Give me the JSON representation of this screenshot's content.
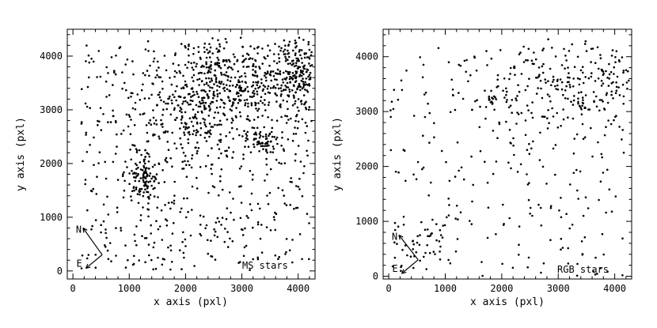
{
  "chart_data": [
    {
      "type": "scatter",
      "annotation": "MS stars",
      "xlabel": "x axis (pxl)",
      "ylabel": "y axis (pxl)",
      "xlim": [
        -100,
        4300
      ],
      "ylim": [
        -150,
        4500
      ],
      "xticks": [
        0,
        1000,
        2000,
        3000,
        4000
      ],
      "yticks": [
        0,
        1000,
        2000,
        3000,
        4000
      ],
      "xtick_labels": [
        "0",
        "1000",
        "2000",
        "3000",
        "4000"
      ],
      "ytick_labels": [
        "0",
        "1000",
        "2000",
        "3000",
        "4000"
      ],
      "grid": false,
      "compass": {
        "north": "N",
        "east": "E",
        "north_tip": [
          180,
          800
        ],
        "east_tip": [
          230,
          50
        ],
        "origin": [
          520,
          300
        ]
      },
      "clusters": [
        {
          "x": 2700,
          "y": 3500,
          "sx": 450,
          "sy": 450,
          "n": 320
        },
        {
          "x": 3950,
          "y": 3700,
          "sx": 250,
          "sy": 400,
          "n": 260
        },
        {
          "x": 1250,
          "y": 1750,
          "sx": 120,
          "sy": 220,
          "n": 110
        },
        {
          "x": 3350,
          "y": 2450,
          "sx": 130,
          "sy": 120,
          "n": 60
        },
        {
          "x": 2100,
          "y": 2900,
          "sx": 550,
          "sy": 550,
          "n": 200
        }
      ],
      "background": {
        "x": [
          150,
          4200
        ],
        "y": [
          0,
          4200
        ],
        "n": 560
      },
      "seed": 11
    },
    {
      "type": "scatter",
      "annotation": "RGB stars",
      "xlabel": "x axis (pxl)",
      "ylabel": "y axis (pxl)",
      "xlim": [
        -100,
        4300
      ],
      "ylim": [
        -50,
        4500
      ],
      "xticks": [
        0,
        1000,
        2000,
        3000,
        4000
      ],
      "yticks": [
        0,
        1000,
        2000,
        3000,
        4000
      ],
      "xtick_labels": [
        "0",
        "1000",
        "2000",
        "3000",
        "4000"
      ],
      "ytick_labels": [
        "0",
        "1000",
        "2000",
        "3000",
        "4000"
      ],
      "grid": false,
      "compass": {
        "north": "N",
        "east": "E",
        "north_tip": [
          180,
          750
        ],
        "east_tip": [
          230,
          50
        ],
        "origin": [
          520,
          300
        ]
      },
      "clusters": [
        {
          "x": 2900,
          "y": 3400,
          "sx": 650,
          "sy": 400,
          "n": 170
        },
        {
          "x": 3900,
          "y": 3500,
          "sx": 250,
          "sy": 450,
          "n": 60
        },
        {
          "x": 1800,
          "y": 3200,
          "sx": 60,
          "sy": 60,
          "n": 14
        },
        {
          "x": 700,
          "y": 700,
          "sx": 300,
          "sy": 300,
          "n": 35
        }
      ],
      "background": {
        "x": [
          0,
          4200
        ],
        "y": [
          0,
          4200
        ],
        "n": 270
      },
      "seed": 23
    }
  ]
}
